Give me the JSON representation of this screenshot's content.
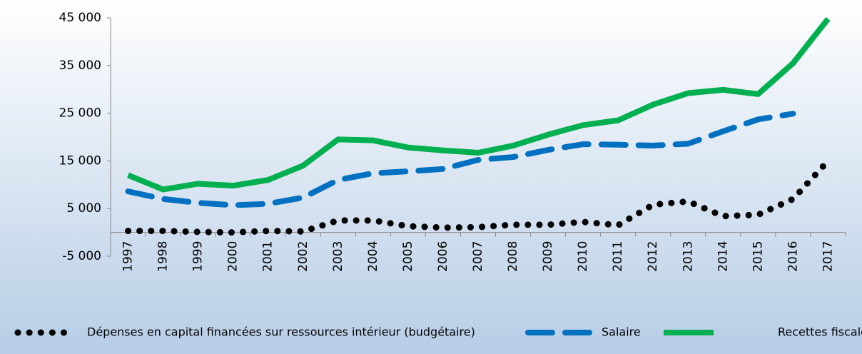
{
  "chart_data": {
    "type": "line",
    "categories": [
      "1997",
      "1998",
      "1999",
      "2000",
      "2001",
      "2002",
      "2003",
      "2004",
      "2005",
      "2006",
      "2007",
      "2008",
      "2009",
      "2010",
      "2011",
      "2012",
      "2013",
      "2014",
      "2015",
      "2016",
      "2017"
    ],
    "series": [
      {
        "name": "Dépenses en capital financées sur ressources intérieur (budgétaire)",
        "color": "#000000",
        "style": "dotted",
        "values": [
          300,
          300,
          100,
          0,
          300,
          200,
          2500,
          2500,
          1300,
          1000,
          1100,
          1600,
          1600,
          2200,
          1500,
          5800,
          6500,
          3400,
          3700,
          7000,
          15000
        ]
      },
      {
        "name": "Salaire",
        "color": "#0070c0",
        "style": "dashed",
        "values": [
          8600,
          7000,
          6200,
          5700,
          6000,
          7300,
          11000,
          12400,
          12800,
          13300,
          15200,
          15800,
          17300,
          18500,
          18400,
          18200,
          18600,
          21200,
          23700,
          24900,
          null
        ]
      },
      {
        "name": "Recettes fiscales",
        "color": "#00b050",
        "style": "solid",
        "values": [
          12000,
          9000,
          10200,
          9800,
          11000,
          14000,
          19500,
          19300,
          17800,
          17200,
          16700,
          18200,
          20500,
          22500,
          23500,
          26800,
          29200,
          29900,
          29000,
          35500,
          44800
        ]
      }
    ],
    "ylim": [
      -5000,
      45000
    ],
    "yticks": [
      {
        "value": -5000,
        "label": "-5 000"
      },
      {
        "value": 5000,
        "label": "5 000"
      },
      {
        "value": 15000,
        "label": "15 000"
      },
      {
        "value": 25000,
        "label": "25 000"
      },
      {
        "value": 35000,
        "label": "35 000"
      },
      {
        "value": 45000,
        "label": "45 000"
      }
    ],
    "grid": false,
    "legend": "bottom"
  }
}
